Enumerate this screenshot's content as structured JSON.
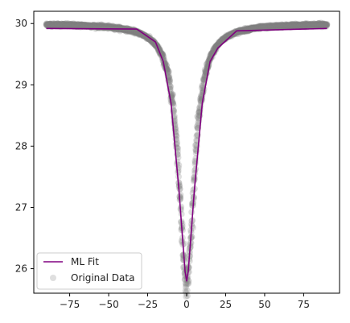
{
  "chart_data": {
    "type": "scatter",
    "title": "",
    "xlabel": "",
    "ylabel": "",
    "xlim": [
      -98,
      98
    ],
    "ylim": [
      25.6,
      30.2
    ],
    "x_ticks": [
      -75,
      -50,
      -25,
      0,
      25,
      50,
      75
    ],
    "x_tick_labels": [
      "−75",
      "−50",
      "−25",
      "0",
      "25",
      "50",
      "75"
    ],
    "y_ticks": [
      26,
      27,
      28,
      29,
      30
    ],
    "y_tick_labels": [
      "26",
      "27",
      "28",
      "29",
      "30"
    ],
    "grid": false,
    "legend": "lower-left",
    "series": [
      {
        "name": "ML Fit",
        "kind": "line",
        "color": "#800080",
        "x": [
          -90,
          -32,
          -20,
          -15,
          -10,
          -5,
          -3,
          -1,
          0,
          1,
          3,
          5,
          10,
          15,
          20,
          32,
          90
        ],
        "y": [
          29.92,
          29.91,
          29.7,
          29.38,
          28.7,
          27.3,
          26.62,
          25.95,
          25.8,
          25.95,
          26.62,
          27.3,
          28.7,
          29.38,
          29.6,
          29.88,
          29.92
        ]
      },
      {
        "name": "Original Data",
        "kind": "scatter",
        "color": "#808080",
        "alpha": 0.25,
        "model": "lorentzian",
        "baseline": 30.0,
        "depth": 4.2,
        "center": 0,
        "half_width": 6.0,
        "x_range": [
          -90,
          90
        ],
        "n_points": 2000
      }
    ]
  }
}
